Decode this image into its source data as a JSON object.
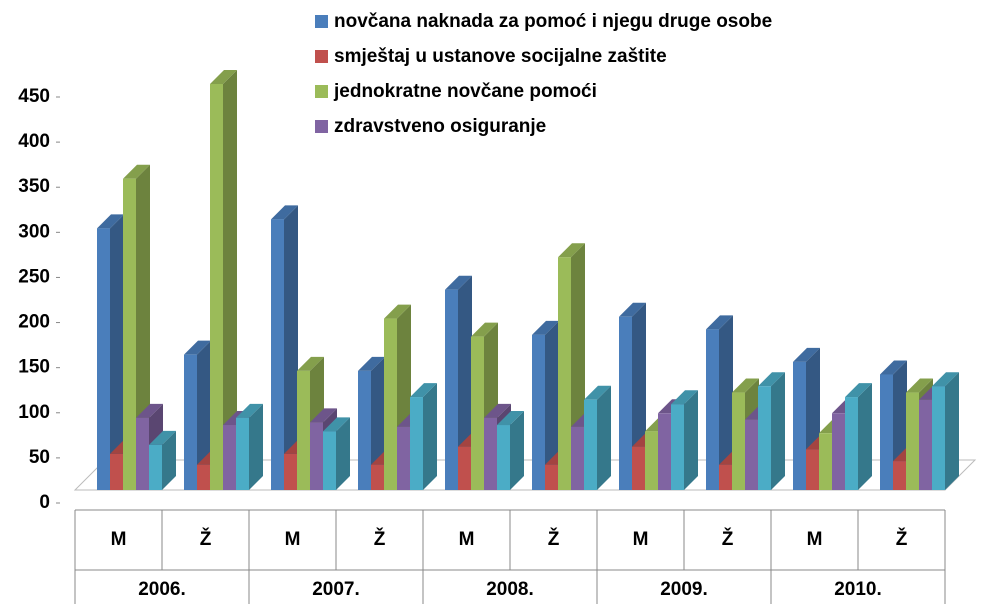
{
  "chart_data": {
    "type": "bar3d",
    "categories": [
      "M",
      "Ž",
      "M",
      "Ž",
      "M",
      "Ž",
      "M",
      "Ž",
      "M",
      "Ž"
    ],
    "category_groups": [
      "2006.",
      "2007.",
      "2008.",
      "2009.",
      "2010."
    ],
    "series": [
      {
        "name": "novčana naknada za pomoć i njegu druge osobe",
        "color": "#4a7ebb",
        "values": [
          290,
          150,
          300,
          132,
          222,
          172,
          192,
          178,
          142,
          128
        ]
      },
      {
        "name": "smještaj u ustanove socijalne zaštite",
        "color": "#c0504d",
        "values": [
          40,
          28,
          40,
          28,
          48,
          28,
          48,
          28,
          45,
          32
        ]
      },
      {
        "name": "jednokratne novčane pomoći",
        "color": "#9bbb59",
        "values": [
          345,
          450,
          132,
          190,
          170,
          258,
          65,
          108,
          63,
          108
        ]
      },
      {
        "name": "zdravstveno osiguranje",
        "color": "#8064a2",
        "values": [
          80,
          72,
          75,
          70,
          80,
          70,
          85,
          78,
          85,
          100
        ]
      },
      {
        "name": null,
        "color": "#4bacc6",
        "values": [
          50,
          80,
          65,
          103,
          72,
          100,
          95,
          115,
          103,
          115
        ]
      }
    ],
    "ylim": [
      0,
      450
    ],
    "yticks": [
      0,
      50,
      100,
      150,
      200,
      250,
      300,
      350,
      400,
      450
    ],
    "legend": "top-right"
  }
}
